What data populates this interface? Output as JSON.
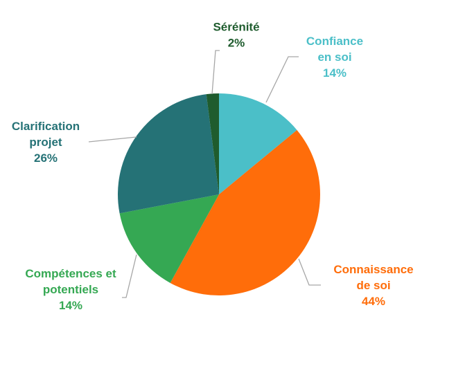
{
  "chart_data": {
    "type": "pie",
    "start_angle_deg": 0,
    "direction": "clockwise",
    "slices": [
      {
        "label_lines": [
          "Confiance",
          "en soi"
        ],
        "value": 14,
        "value_label": "14%",
        "color": "#4BBFC8",
        "label_color": "#4BBFC8"
      },
      {
        "label_lines": [
          "Connaissance",
          "de soi"
        ],
        "value": 44,
        "value_label": "44%",
        "color": "#FF6D0A",
        "label_color": "#FF6D0A"
      },
      {
        "label_lines": [
          "Compétences et",
          "potentiels"
        ],
        "value": 14,
        "value_label": "14%",
        "color": "#35A853",
        "label_color": "#35A853"
      },
      {
        "label_lines": [
          "Clarification",
          "projet"
        ],
        "value": 26,
        "value_label": "26%",
        "color": "#257276",
        "label_color": "#257276"
      },
      {
        "label_lines": [
          "Sérénité"
        ],
        "value": 2,
        "value_label": "2%",
        "color": "#1F5C2E",
        "label_color": "#1F5C2E"
      }
    ],
    "leader_line_color": "#A6A6A6"
  }
}
